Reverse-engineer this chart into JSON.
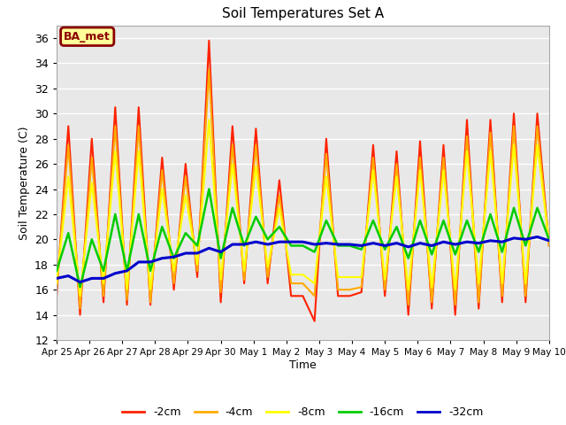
{
  "title": "Soil Temperatures Set A",
  "xlabel": "Time",
  "ylabel": "Soil Temperature (C)",
  "ylim": [
    12,
    37
  ],
  "yticks": [
    12,
    14,
    16,
    18,
    20,
    22,
    24,
    26,
    28,
    30,
    32,
    34,
    36
  ],
  "plot_bg_color": "#e8e8e8",
  "annotation_text": "BA_met",
  "annotation_bg": "#ffff99",
  "annotation_border": "#8b0000",
  "annotation_text_color": "#8b0000",
  "legend_entries": [
    "-2cm",
    "-4cm",
    "-8cm",
    "-16cm",
    "-32cm"
  ],
  "line_colors": [
    "#ff2200",
    "#ffaa00",
    "#ffff00",
    "#00cc00",
    "#0000cc"
  ],
  "line_widths": [
    1.5,
    1.5,
    1.5,
    1.8,
    2.2
  ],
  "x_tick_labels": [
    "Apr 25",
    "Apr 26",
    "Apr 27",
    "Apr 28",
    "Apr 29",
    "Apr 30",
    "May 1",
    "May 2",
    "May 3",
    "May 4",
    "May 5",
    "May 6",
    "May 7",
    "May 8",
    "May 9",
    "May 10"
  ],
  "series_2cm": [
    15.5,
    29.0,
    14.0,
    28.0,
    15.0,
    30.5,
    14.8,
    30.5,
    14.8,
    26.5,
    16.0,
    26.0,
    17.0,
    35.8,
    15.0,
    29.0,
    16.5,
    28.8,
    16.5,
    24.7,
    15.5,
    15.5,
    13.5,
    28.0,
    15.5,
    15.5,
    15.8,
    27.5,
    15.5,
    27.0,
    14.0,
    27.8,
    14.5,
    27.5,
    14.0,
    29.5,
    14.5,
    29.5,
    15.0,
    30.0,
    15.0,
    30.0,
    19.5
  ],
  "series_4cm": [
    16.0,
    27.5,
    14.5,
    26.5,
    15.5,
    29.0,
    15.2,
    29.0,
    15.0,
    25.5,
    16.5,
    25.0,
    17.5,
    33.5,
    15.8,
    27.5,
    16.8,
    27.5,
    17.0,
    23.5,
    16.5,
    16.5,
    15.5,
    26.8,
    16.0,
    16.0,
    16.2,
    26.5,
    16.0,
    26.0,
    14.8,
    26.5,
    15.0,
    26.5,
    14.8,
    28.2,
    15.0,
    28.5,
    15.5,
    29.0,
    15.5,
    29.0,
    19.5
  ],
  "series_8cm": [
    16.5,
    25.0,
    15.5,
    24.5,
    16.5,
    27.0,
    16.0,
    27.0,
    16.0,
    24.0,
    17.5,
    23.5,
    18.0,
    29.5,
    16.8,
    26.0,
    17.5,
    25.8,
    17.8,
    22.5,
    17.2,
    17.2,
    16.5,
    25.0,
    17.0,
    17.0,
    17.0,
    25.5,
    16.8,
    25.0,
    16.0,
    25.5,
    16.2,
    25.5,
    16.0,
    27.0,
    16.5,
    27.0,
    16.5,
    27.5,
    16.5,
    27.5,
    19.8
  ],
  "series_16cm": [
    17.5,
    20.5,
    16.2,
    20.0,
    17.5,
    22.0,
    17.5,
    22.0,
    17.5,
    21.0,
    18.5,
    20.5,
    19.5,
    24.0,
    18.5,
    22.5,
    19.5,
    21.8,
    20.0,
    21.0,
    19.5,
    19.5,
    19.0,
    21.5,
    19.5,
    19.5,
    19.2,
    21.5,
    19.2,
    21.0,
    18.5,
    21.5,
    18.8,
    21.5,
    18.8,
    21.5,
    19.0,
    22.0,
    19.0,
    22.5,
    19.5,
    22.5,
    20.0
  ],
  "series_32cm": [
    16.9,
    17.1,
    16.6,
    16.9,
    16.9,
    17.3,
    17.5,
    18.2,
    18.2,
    18.5,
    18.6,
    18.9,
    18.9,
    19.3,
    19.0,
    19.6,
    19.6,
    19.8,
    19.6,
    19.8,
    19.8,
    19.8,
    19.6,
    19.7,
    19.6,
    19.6,
    19.5,
    19.7,
    19.5,
    19.7,
    19.4,
    19.7,
    19.5,
    19.8,
    19.6,
    19.8,
    19.7,
    19.9,
    19.8,
    20.1,
    20.0,
    20.2,
    19.9
  ]
}
